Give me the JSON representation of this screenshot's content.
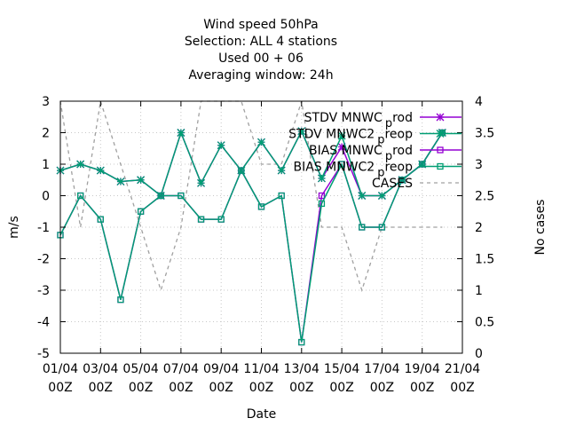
{
  "chart_data": {
    "type": "line",
    "title_lines": [
      "Wind speed 50hPa",
      "Selection: ALL      4 stations",
      "Used  00 + 06",
      "Averaging window: 24h"
    ],
    "xlabel": "Date",
    "ylabel": "m/s",
    "y2label": "No cases",
    "x_ticks": [
      {
        "day": 1,
        "label1": "01/04",
        "label2": "00Z"
      },
      {
        "day": 3,
        "label1": "03/04",
        "label2": "00Z"
      },
      {
        "day": 5,
        "label1": "05/04",
        "label2": "00Z"
      },
      {
        "day": 7,
        "label1": "07/04",
        "label2": "00Z"
      },
      {
        "day": 9,
        "label1": "09/04",
        "label2": "00Z"
      },
      {
        "day": 11,
        "label1": "11/04",
        "label2": "00Z"
      },
      {
        "day": 13,
        "label1": "13/04",
        "label2": "00Z"
      },
      {
        "day": 15,
        "label1": "15/04",
        "label2": "00Z"
      },
      {
        "day": 17,
        "label1": "17/04",
        "label2": "00Z"
      },
      {
        "day": 19,
        "label1": "19/04",
        "label2": "00Z"
      },
      {
        "day": 21,
        "label1": "21/04",
        "label2": "00Z"
      }
    ],
    "xlim": [
      1,
      21
    ],
    "ylim": [
      -5,
      3
    ],
    "y_ticks": [
      "-5",
      "-4",
      "-3",
      "-2",
      "-1",
      "0",
      "1",
      "2",
      "3"
    ],
    "y2lim": [
      0,
      4
    ],
    "y2_ticks": [
      "0",
      "0.5",
      "1",
      "1.5",
      "2",
      "2.5",
      "3",
      "3.5",
      "4"
    ],
    "grid": true,
    "legend_position": "top-right",
    "series": [
      {
        "name": "STDV MNWC_prod",
        "legend_main": "STDV MNWC",
        "legend_sub": "p",
        "legend_tail": "rod",
        "color": "#9400d3",
        "marker": "star",
        "axis": "y1",
        "x": [
          1,
          2,
          3,
          4,
          5,
          6,
          7,
          8,
          9,
          10,
          11,
          12,
          13,
          14,
          15,
          16,
          17,
          18,
          19,
          20
        ],
        "y": [
          0.8,
          1.0,
          0.8,
          0.45,
          0.5,
          0.0,
          2.0,
          0.4,
          1.6,
          0.8,
          1.7,
          0.8,
          2.05,
          0.55,
          1.55,
          0.0,
          0.0,
          0.5,
          1.0,
          2.0
        ]
      },
      {
        "name": "STDV MNWC2_preop",
        "legend_main": "STDV MNWC2",
        "legend_sub": "p",
        "legend_tail": "reop",
        "color": "#009e73",
        "marker": "star",
        "axis": "y1",
        "x": [
          1,
          2,
          3,
          4,
          5,
          6,
          7,
          8,
          9,
          10,
          11,
          12,
          13,
          14,
          15,
          16,
          17,
          18,
          19,
          20
        ],
        "y": [
          0.8,
          1.0,
          0.8,
          0.45,
          0.5,
          0.0,
          2.0,
          0.4,
          1.6,
          0.8,
          1.7,
          0.8,
          2.05,
          0.55,
          1.9,
          0.0,
          0.0,
          0.5,
          1.0,
          2.0
        ]
      },
      {
        "name": "BIAS MNWC_prod",
        "legend_main": "BIAS MNWC",
        "legend_sub": "p",
        "legend_tail": "rod",
        "color": "#9400d3",
        "marker": "square",
        "axis": "y1",
        "x": [
          1,
          2,
          3,
          4,
          5,
          6,
          7,
          8,
          9,
          10,
          11,
          12,
          13,
          14,
          15,
          16,
          17,
          18,
          19,
          20
        ],
        "y": [
          -1.25,
          0.0,
          -0.75,
          -3.3,
          -0.5,
          0.0,
          0.0,
          -0.75,
          -0.75,
          0.8,
          -0.35,
          0.0,
          -4.65,
          0.0,
          1.0,
          -1.0,
          -1.0,
          0.5,
          1.0,
          2.0
        ]
      },
      {
        "name": "BIAS MNWC2_preop",
        "legend_main": "BIAS MNWC2",
        "legend_sub": "p",
        "legend_tail": "reop",
        "color": "#009e73",
        "marker": "square",
        "axis": "y1",
        "x": [
          1,
          2,
          3,
          4,
          5,
          6,
          7,
          8,
          9,
          10,
          11,
          12,
          13,
          14,
          15,
          16,
          17,
          18,
          19,
          20
        ],
        "y": [
          -1.25,
          0.0,
          -0.75,
          -3.3,
          -0.5,
          0.0,
          0.0,
          -0.75,
          -0.75,
          0.8,
          -0.35,
          0.0,
          -4.65,
          -0.25,
          1.0,
          -1.0,
          -1.0,
          0.5,
          1.0,
          2.0
        ]
      },
      {
        "name": "CASES",
        "legend_main": "CASES",
        "legend_sub": "",
        "legend_tail": "",
        "color": "#a0a0a0",
        "marker": "none",
        "dashed": true,
        "axis": "y2",
        "x": [
          1,
          1.5,
          2,
          3,
          4,
          5,
          6,
          7,
          8,
          9,
          10,
          11,
          12,
          13,
          14,
          15,
          16,
          17,
          18,
          19,
          20
        ],
        "y": [
          4,
          3,
          2,
          4,
          3,
          2,
          1,
          2,
          4,
          4,
          4,
          3,
          3,
          4,
          2,
          2,
          1,
          2,
          2,
          2,
          2
        ]
      }
    ]
  }
}
